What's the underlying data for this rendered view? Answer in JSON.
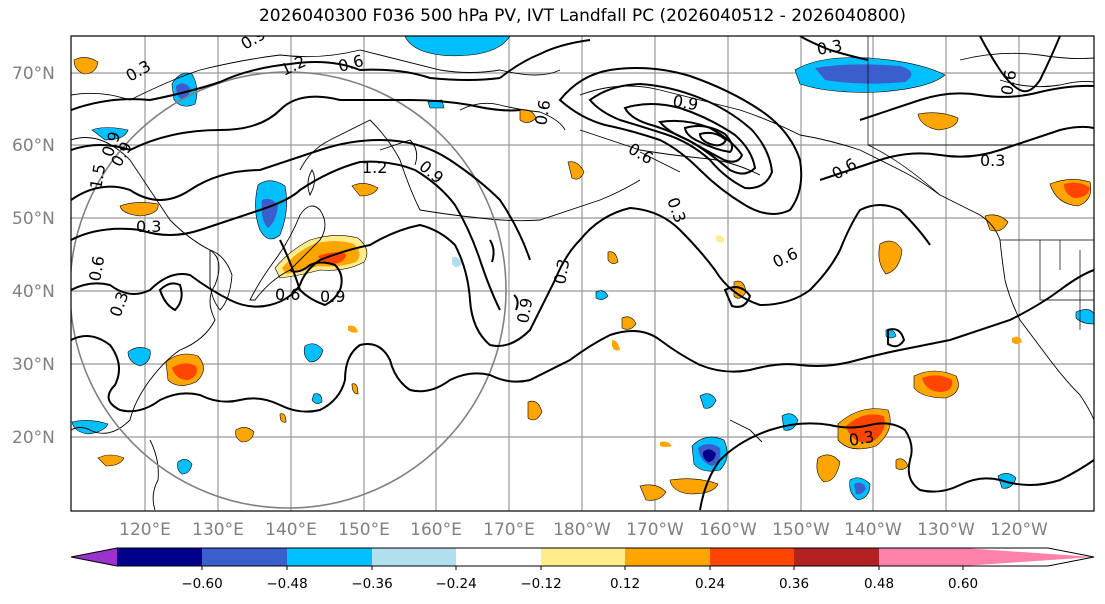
{
  "title": "2026040300 F036 500 hPa PV, IVT Landfall PC (2026040512 - 2026040800)",
  "map": {
    "lat_labels": [
      "70°N",
      "60°N",
      "50°N",
      "40°N",
      "30°N",
      "20°N"
    ],
    "lon_labels": [
      "120°E",
      "130°E",
      "140°E",
      "150°E",
      "160°E",
      "170°E",
      "180°W",
      "170°W",
      "160°W",
      "150°W",
      "140°W",
      "130°W",
      "120°W"
    ],
    "contour_labels": [
      "0.9",
      "1.2",
      "0.6",
      "0.3",
      "0.9",
      "1.2",
      "0.9",
      "0.6",
      "0.3",
      "0.9",
      "0.6",
      "0.3",
      "0.6",
      "0.3",
      "0.6",
      "0.9",
      "0.3",
      "0.6",
      "0.3",
      "0.6",
      "0.9",
      "1.5",
      "0.3",
      "0.6",
      "0.9",
      "0.3"
    ]
  },
  "colorbar": {
    "ticks": [
      "−0.60",
      "−0.48",
      "−0.36",
      "−0.24",
      "−0.12",
      "0.12",
      "0.24",
      "0.36",
      "0.48",
      "0.60"
    ],
    "colors": [
      "#9a32cd",
      "#00008b",
      "#3a5fcd",
      "#00bfff",
      "#b2dfee",
      "#ffffff",
      "#ffec8b",
      "#ffa500",
      "#ff4500",
      "#b22222",
      "#ff82ab"
    ]
  }
}
